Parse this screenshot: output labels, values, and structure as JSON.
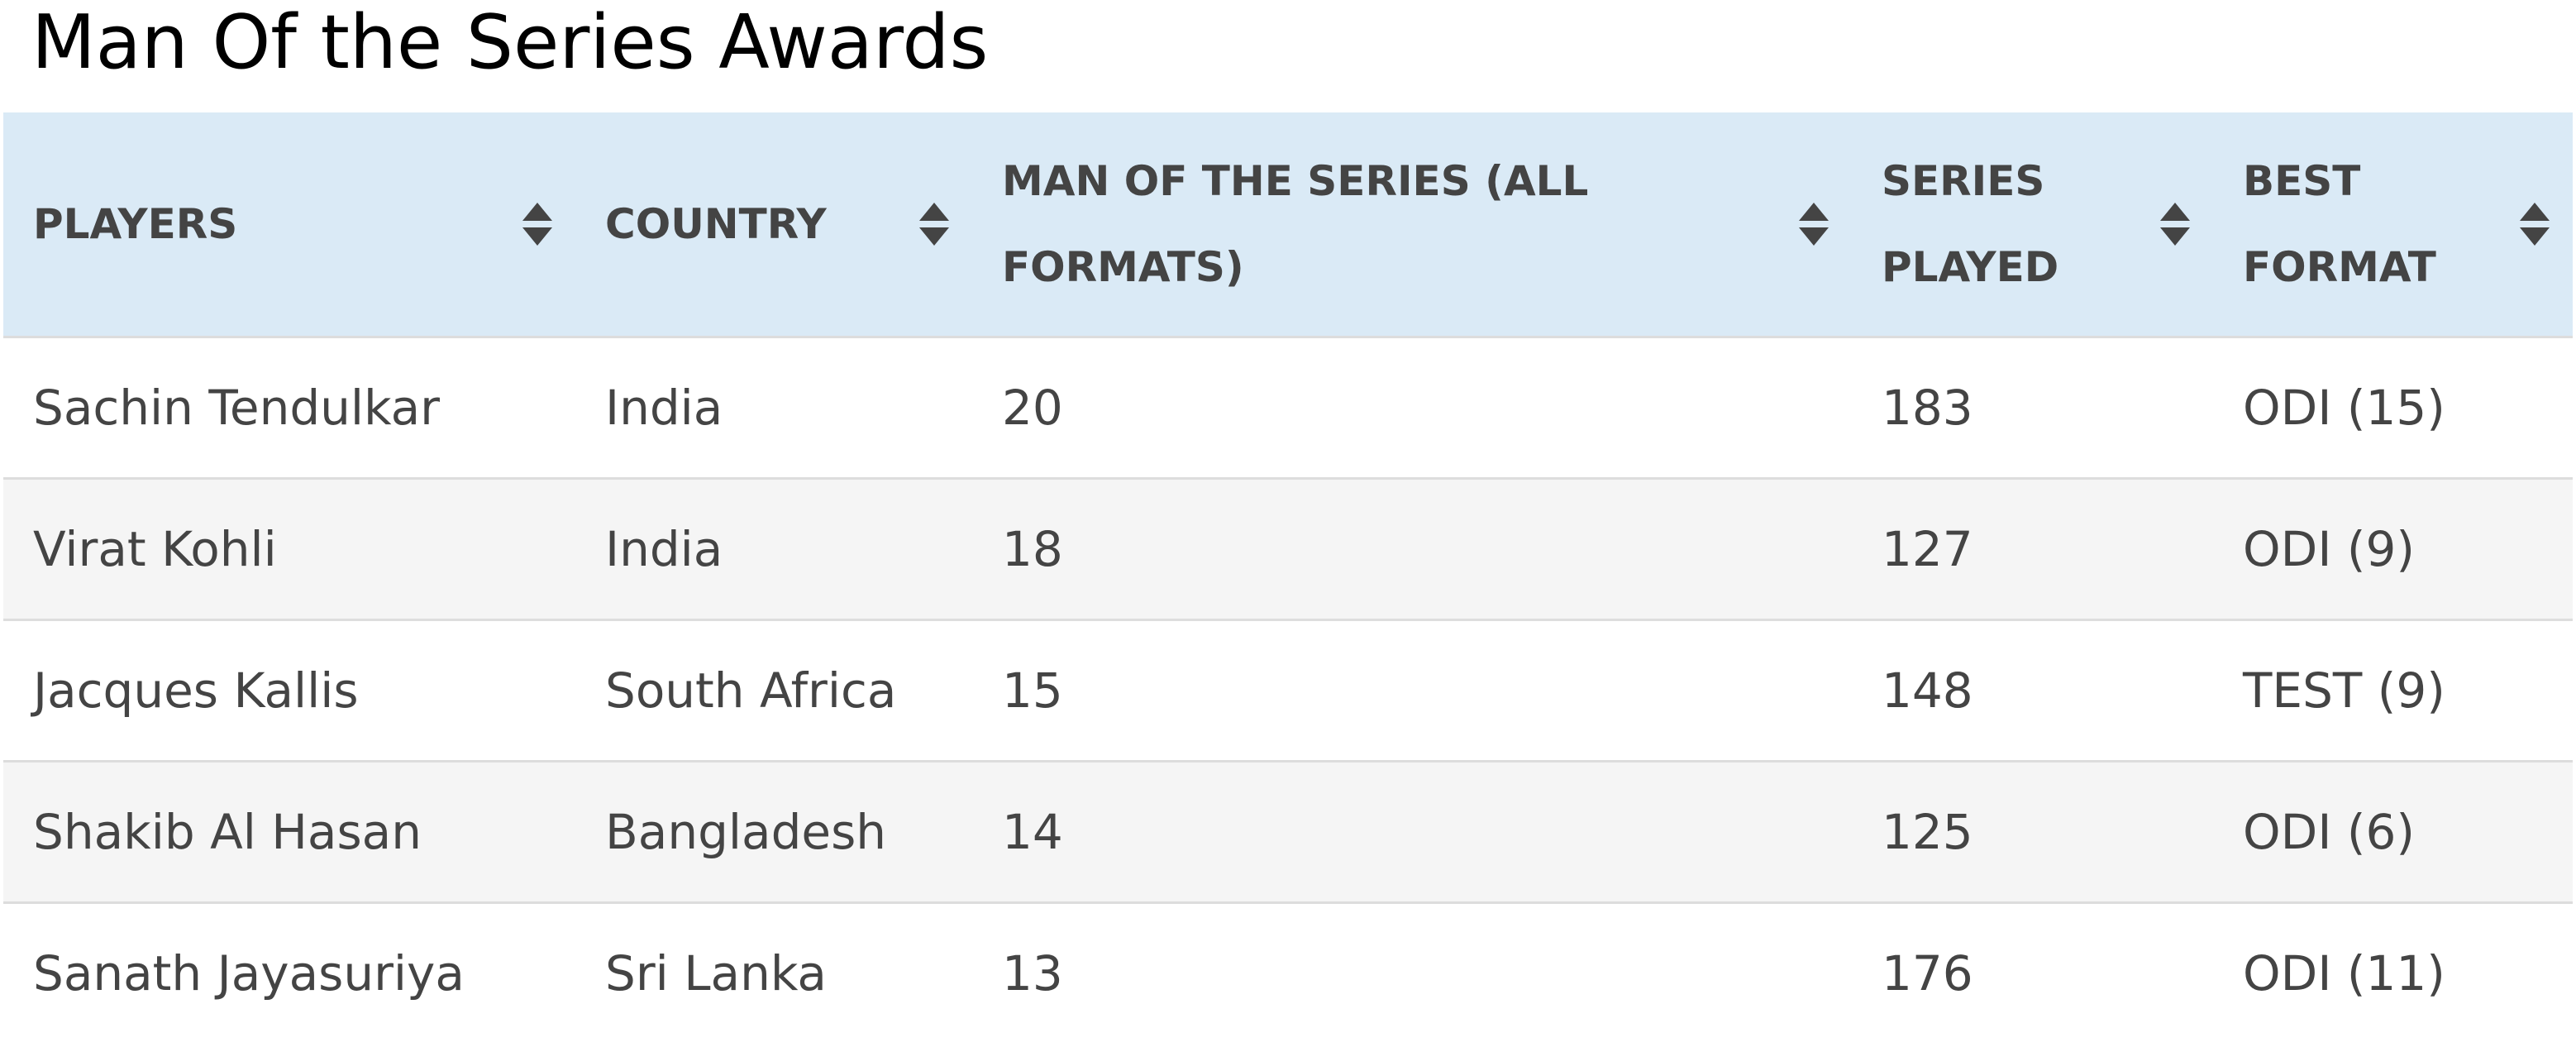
{
  "title": "Man Of the Series Awards",
  "table": {
    "headers": [
      "PLAYERS",
      "COUNTRY",
      "MAN OF THE SERIES (ALL FORMATS)",
      "SERIES PLAYED",
      "BEST FORMAT"
    ],
    "rows": [
      [
        "Sachin Tendulkar",
        "India",
        "20",
        "183",
        "ODI (15)"
      ],
      [
        "Virat Kohli",
        "India",
        "18",
        "127",
        "ODI (9)"
      ],
      [
        "Jacques Kallis",
        "South Africa",
        "15",
        "148",
        "TEST (9)"
      ],
      [
        "Shakib Al Hasan",
        "Bangladesh",
        "14",
        "125",
        "ODI (6)"
      ],
      [
        "Sanath Jayasuriya",
        "Sri Lanka",
        "13",
        "176",
        "ODI (11)"
      ]
    ]
  }
}
